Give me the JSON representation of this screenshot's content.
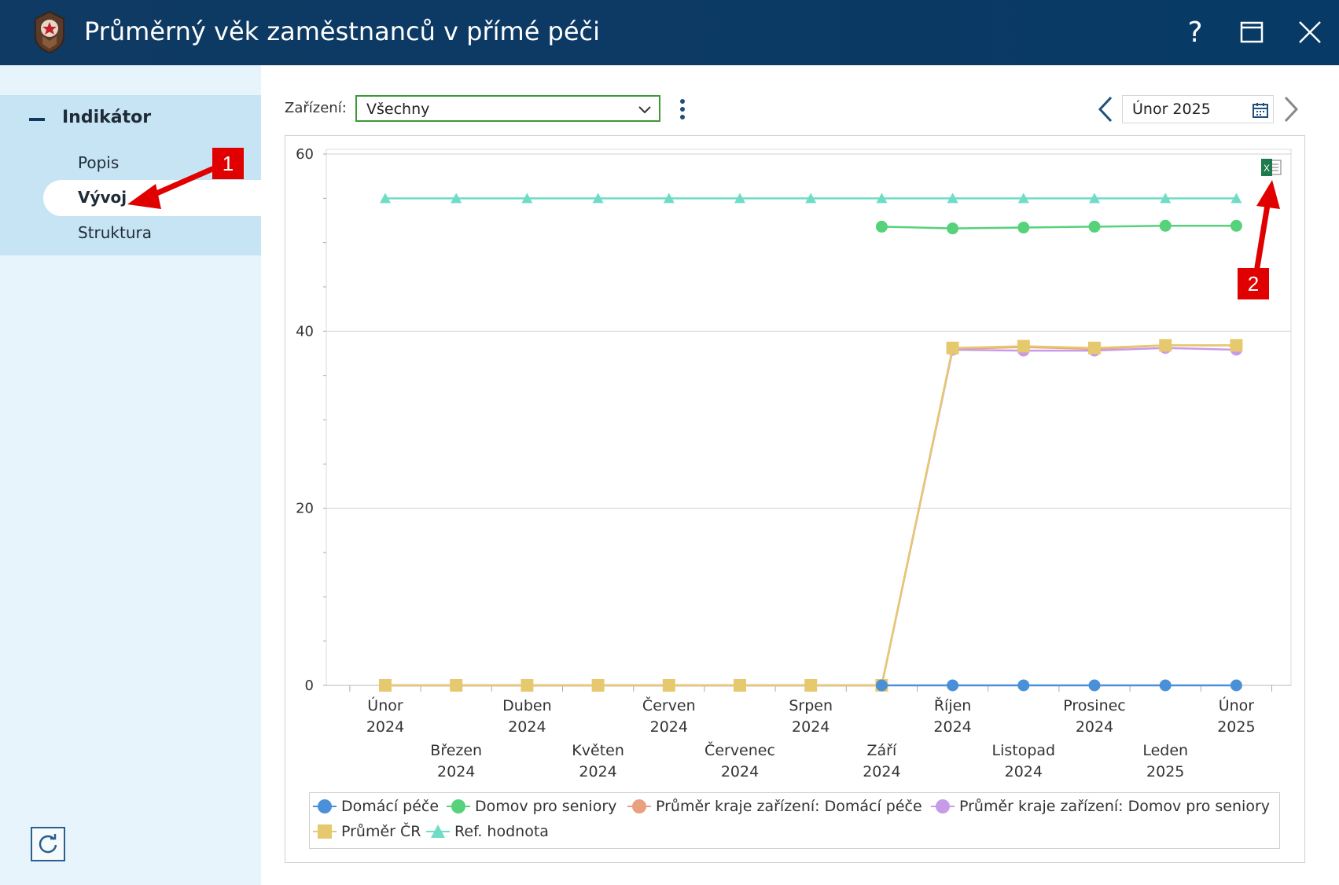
{
  "window": {
    "title": "Průměrný věk zaměstnanců v přímé péči",
    "help_label": "?"
  },
  "sidebar": {
    "section_title": "Indikátor",
    "items": [
      {
        "label": "Popis"
      },
      {
        "label": "Vývoj",
        "active": true
      },
      {
        "label": "Struktura"
      }
    ]
  },
  "toolbar": {
    "facility_label": "Zařízení:",
    "facility_value": "Všechny",
    "period_value": "Únor 2025"
  },
  "annotations": {
    "callout_1": "1",
    "callout_2": "2",
    "color": "#e00000"
  },
  "colors": {
    "titlebar": "#0b3a64",
    "sidebar_active_bg": "#c7e4f4",
    "select_border": "#3a9a35"
  },
  "chart_data": {
    "type": "line",
    "title": "",
    "xlabel": "",
    "ylabel": "",
    "ylim": [
      0,
      60
    ],
    "yticks": [
      0,
      20,
      40,
      60
    ],
    "grid": true,
    "legend_position": "bottom",
    "categories": [
      [
        "Únor",
        "2024"
      ],
      [
        "Březen",
        "2024"
      ],
      [
        "Duben",
        "2024"
      ],
      [
        "Květen",
        "2024"
      ],
      [
        "Červen",
        "2024"
      ],
      [
        "Červenec",
        "2024"
      ],
      [
        "Srpen",
        "2024"
      ],
      [
        "Září",
        "2024"
      ],
      [
        "Říjen",
        "2024"
      ],
      [
        "Listopad",
        "2024"
      ],
      [
        "Prosinec",
        "2024"
      ],
      [
        "Leden",
        "2025"
      ],
      [
        "Únor",
        "2025"
      ]
    ],
    "series": [
      {
        "name": "Domácí péče",
        "color": "#4a90d9",
        "marker": "circle",
        "values": [
          null,
          null,
          null,
          null,
          null,
          null,
          null,
          0,
          0,
          0,
          0,
          0,
          0
        ]
      },
      {
        "name": "Domov pro seniory",
        "color": "#55d27a",
        "marker": "circle",
        "values": [
          null,
          null,
          null,
          null,
          null,
          null,
          null,
          51.8,
          51.6,
          51.7,
          51.8,
          51.9,
          51.9
        ]
      },
      {
        "name": "Průměr kraje zařízení: Domácí péče",
        "color": "#e8a07f",
        "marker": "circle",
        "values": [
          0,
          0,
          0,
          0,
          0,
          0,
          0,
          0,
          38.0,
          38.2,
          38.0,
          38.4,
          38.4
        ]
      },
      {
        "name": "Průměr kraje zařízení: Domov pro seniory",
        "color": "#c89be8",
        "marker": "circle",
        "values": [
          0,
          0,
          0,
          0,
          0,
          0,
          0,
          0,
          37.9,
          37.8,
          37.8,
          38.1,
          37.9
        ]
      },
      {
        "name": "Průměr ČR",
        "color": "#e6c86e",
        "marker": "square",
        "values": [
          0,
          0,
          0,
          0,
          0,
          0,
          0,
          0,
          38.1,
          38.3,
          38.1,
          38.4,
          38.4
        ]
      },
      {
        "name": "Ref. hodnota",
        "color": "#6fdcc6",
        "marker": "triangle",
        "values": [
          55,
          55,
          55,
          55,
          55,
          55,
          55,
          55,
          55,
          55,
          55,
          55,
          55
        ]
      }
    ]
  }
}
